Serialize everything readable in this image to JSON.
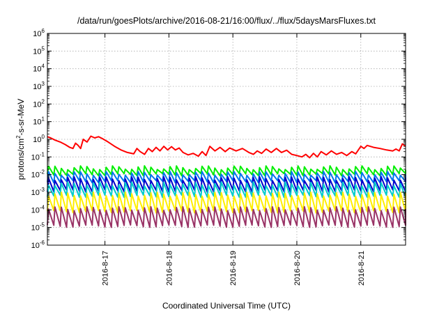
{
  "chart_data": {
    "type": "line",
    "title": "/data/run/goesPlots/archive/2016-08-21/16:00/flux/../flux/5daysMarsFluxes.txt",
    "xlabel": "Coordinated Universal Time (UTC)",
    "ylabel_main": "protons/cm",
    "ylabel_sup": "2",
    "ylabel_rest": "-s-sr-MeV",
    "y_scale": "log",
    "ylim_exp": [
      -6,
      6
    ],
    "y_ticks": [
      {
        "base": "10",
        "exp": "6"
      },
      {
        "base": "10",
        "exp": "5"
      },
      {
        "base": "10",
        "exp": "4"
      },
      {
        "base": "10",
        "exp": "3"
      },
      {
        "base": "10",
        "exp": "2"
      },
      {
        "base": "10",
        "exp": "1"
      },
      {
        "base": "10",
        "exp": "0"
      },
      {
        "base": "10",
        "exp": "-1"
      },
      {
        "base": "10",
        "exp": "-2"
      },
      {
        "base": "10",
        "exp": "-3"
      },
      {
        "base": "10",
        "exp": "-4"
      },
      {
        "base": "10",
        "exp": "-5"
      },
      {
        "base": "10",
        "exp": "-6"
      }
    ],
    "x_range_days": [
      16.1,
      21.7
    ],
    "x_ticks": [
      {
        "label": "2016-8-17",
        "day": 17
      },
      {
        "label": "2016-8-18",
        "day": 18
      },
      {
        "label": "2016-8-19",
        "day": 19
      },
      {
        "label": "2016-8-20",
        "day": 20
      },
      {
        "label": "2016-8-21",
        "day": 21
      }
    ],
    "grid": true,
    "series": [
      {
        "color": "#ff0000",
        "points": [
          [
            16.1,
            1.4
          ],
          [
            16.15,
            1.2
          ],
          [
            16.22,
            0.9
          ],
          [
            16.3,
            0.7
          ],
          [
            16.38,
            0.5
          ],
          [
            16.45,
            0.35
          ],
          [
            16.5,
            0.3
          ],
          [
            16.54,
            0.6
          ],
          [
            16.58,
            0.45
          ],
          [
            16.62,
            0.3
          ],
          [
            16.66,
            1.0
          ],
          [
            16.72,
            0.7
          ],
          [
            16.78,
            1.5
          ],
          [
            16.84,
            1.2
          ],
          [
            16.9,
            1.4
          ],
          [
            16.96,
            1.1
          ],
          [
            17.05,
            0.7
          ],
          [
            17.15,
            0.4
          ],
          [
            17.25,
            0.25
          ],
          [
            17.35,
            0.18
          ],
          [
            17.45,
            0.15
          ],
          [
            17.5,
            0.3
          ],
          [
            17.55,
            0.2
          ],
          [
            17.62,
            0.14
          ],
          [
            17.68,
            0.3
          ],
          [
            17.74,
            0.2
          ],
          [
            17.8,
            0.35
          ],
          [
            17.86,
            0.22
          ],
          [
            17.92,
            0.4
          ],
          [
            17.98,
            0.25
          ],
          [
            18.04,
            0.38
          ],
          [
            18.1,
            0.25
          ],
          [
            18.16,
            0.32
          ],
          [
            18.22,
            0.18
          ],
          [
            18.3,
            0.13
          ],
          [
            18.38,
            0.16
          ],
          [
            18.46,
            0.11
          ],
          [
            18.52,
            0.2
          ],
          [
            18.58,
            0.12
          ],
          [
            18.64,
            0.4
          ],
          [
            18.72,
            0.22
          ],
          [
            18.8,
            0.35
          ],
          [
            18.88,
            0.2
          ],
          [
            18.95,
            0.32
          ],
          [
            19.05,
            0.22
          ],
          [
            19.15,
            0.3
          ],
          [
            19.25,
            0.18
          ],
          [
            19.32,
            0.14
          ],
          [
            19.38,
            0.22
          ],
          [
            19.45,
            0.16
          ],
          [
            19.52,
            0.28
          ],
          [
            19.6,
            0.18
          ],
          [
            19.68,
            0.3
          ],
          [
            19.76,
            0.18
          ],
          [
            19.84,
            0.24
          ],
          [
            19.92,
            0.14
          ],
          [
            20.0,
            0.12
          ],
          [
            20.08,
            0.1
          ],
          [
            20.14,
            0.14
          ],
          [
            20.2,
            0.09
          ],
          [
            20.26,
            0.16
          ],
          [
            20.32,
            0.1
          ],
          [
            20.38,
            0.2
          ],
          [
            20.46,
            0.13
          ],
          [
            20.54,
            0.22
          ],
          [
            20.62,
            0.14
          ],
          [
            20.7,
            0.18
          ],
          [
            20.78,
            0.12
          ],
          [
            20.86,
            0.2
          ],
          [
            20.92,
            0.15
          ],
          [
            21.0,
            0.4
          ],
          [
            21.05,
            0.3
          ],
          [
            21.1,
            0.45
          ],
          [
            21.2,
            0.35
          ],
          [
            21.3,
            0.3
          ],
          [
            21.4,
            0.25
          ],
          [
            21.5,
            0.22
          ],
          [
            21.55,
            0.28
          ],
          [
            21.6,
            0.22
          ],
          [
            21.65,
            0.55
          ],
          [
            21.7,
            0.4
          ]
        ]
      },
      {
        "color": "#00ee00",
        "peak": 0.025,
        "trough": 0.01
      },
      {
        "color": "#0077ee",
        "peak": 0.012,
        "trough": 0.004
      },
      {
        "color": "#0000cc",
        "peak": 0.006,
        "trough": 0.0012
      },
      {
        "color": "#00cccc",
        "peak": 0.003,
        "trough": 0.0006
      },
      {
        "color": "#ffee00",
        "peak": 0.0008,
        "trough": 8e-05
      },
      {
        "color": "#993366",
        "peak": 0.00012,
        "trough": 1.2e-05
      }
    ],
    "sawtooth_period_days": 0.1
  }
}
